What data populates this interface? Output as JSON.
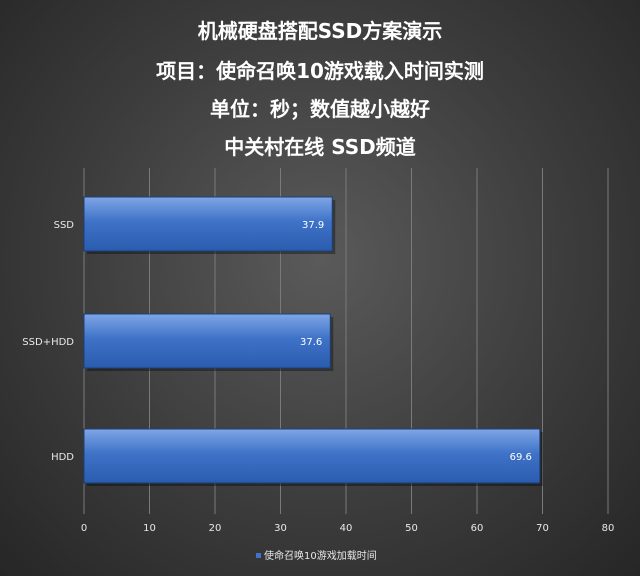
{
  "chart_data": {
    "type": "bar",
    "orientation": "horizontal",
    "title_lines": [
      "机械硬盘搭配SSD方案演示",
      "项目：使命召唤10游戏载入时间实测",
      "单位：秒；数值越小越好",
      "中关村在线  SSD频道"
    ],
    "categories": [
      "SSD",
      "SSD+HDD",
      "HDD"
    ],
    "series": [
      {
        "name": "使命召唤10游戏加载时间",
        "values": [
          37.9,
          37.6,
          69.6
        ]
      }
    ],
    "xlim": [
      0,
      80
    ],
    "xticks": [
      "0",
      "10",
      "20",
      "30",
      "40",
      "50",
      "60",
      "70",
      "80"
    ],
    "grid": true,
    "legend": "bottom",
    "colors": {
      "bar_top": "#7fa6e6",
      "bar_mid": "#3f73c8",
      "bar_bottom": "#2a5cae",
      "bar_stroke": "#1d3f7a",
      "grid": "#7a7a7a",
      "text": "#ffffff"
    }
  }
}
